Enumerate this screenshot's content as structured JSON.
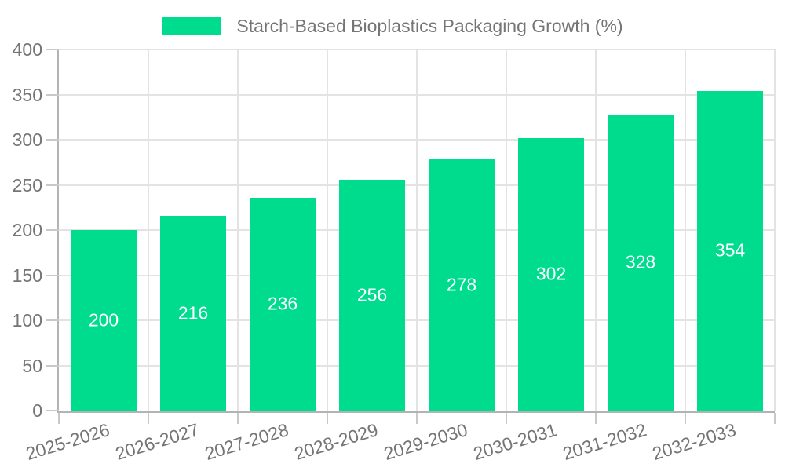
{
  "colors": {
    "bar": "#00DC8E",
    "axis_text": "#757575",
    "gridline": "#e3e3e3",
    "axis_line": "#b3b3b3",
    "tick": "#c9c9c9",
    "value_label": "#ffffff",
    "background": "#ffffff"
  },
  "legend": {
    "position": "top-center",
    "label": "Starch-Based Bioplastics Packaging Growth (%)"
  },
  "chart_data": {
    "type": "bar",
    "title": "",
    "categories": [
      "2025-2026",
      "2026-2027",
      "2027-2028",
      "2028-2029",
      "2029-2030",
      "2030-2031",
      "2031-2032",
      "2032-2033"
    ],
    "series": [
      {
        "name": "Starch-Based Bioplastics Packaging Growth (%)",
        "color": "#00DC8E",
        "values": [
          200,
          216,
          236,
          256,
          278,
          302,
          328,
          354
        ]
      }
    ],
    "value_labels": [
      "200",
      "216",
      "236",
      "256",
      "278",
      "302",
      "328",
      "354"
    ],
    "value_label_position": "inside-center",
    "xlabel": "",
    "ylabel": "",
    "ylim": [
      0,
      400
    ],
    "yticks": [
      0,
      50,
      100,
      150,
      200,
      250,
      300,
      350,
      400
    ],
    "grid": true,
    "x_label_rotation_deg": -17,
    "legend_position": "top"
  }
}
